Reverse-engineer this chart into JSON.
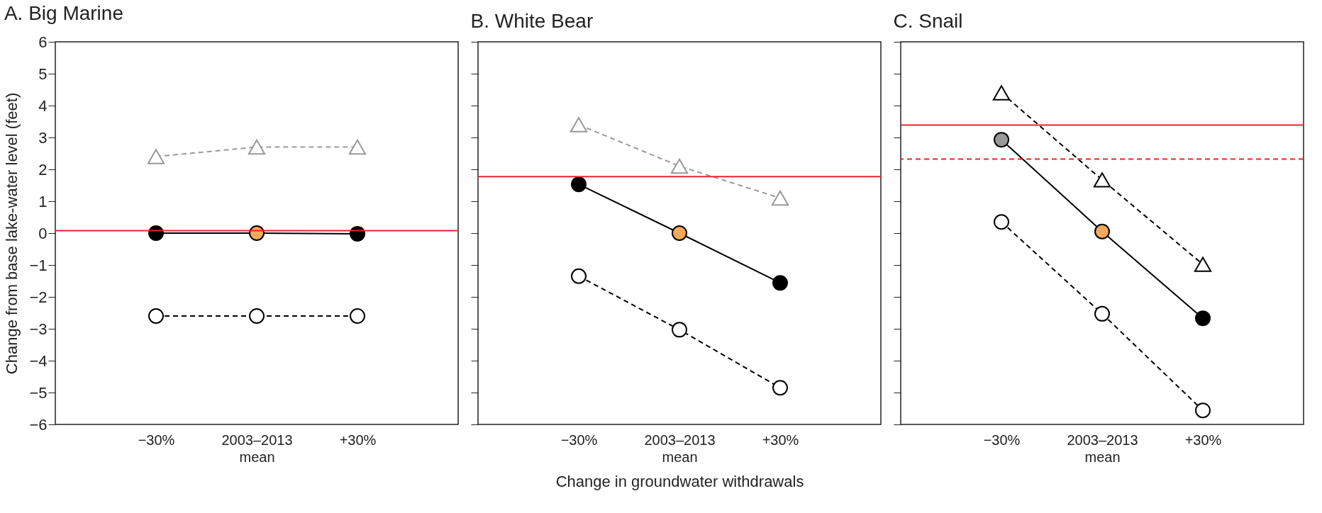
{
  "chart_data": [
    {
      "type": "line",
      "title": "A.  Big Marine",
      "ylabel": "Change from base lake-water level  (feet)",
      "categories": [
        "−30%",
        "2003–2013\nmean",
        "+30%"
      ],
      "ylim": [
        -6,
        6
      ],
      "yticks": [
        {
          "value": -6,
          "label": "−6"
        },
        {
          "value": -5,
          "label": "−5"
        },
        {
          "value": -4,
          "label": "−4"
        },
        {
          "value": -3,
          "label": "−3"
        },
        {
          "value": -2,
          "label": "−2"
        },
        {
          "value": -1,
          "label": "−1"
        },
        0,
        1,
        2,
        3,
        4,
        5,
        6
      ],
      "grid": false,
      "series": [
        {
          "color": "#999999",
          "colors": [
            "#ffffff",
            "#ffffff",
            "#ffffff"
          ],
          "values": [
            2.4,
            2.7,
            2.7
          ],
          "marker": "triangle",
          "line_style": "dashed"
        },
        {
          "color": "#000000",
          "colors": [
            "#000000",
            "#f5a95a",
            "#000000"
          ],
          "values": [
            0,
            0,
            -0.02
          ],
          "marker": "circle",
          "line_style": "solid"
        },
        {
          "color": "#000000",
          "colors": [
            "#ffffff",
            "#ffffff",
            "#ffffff"
          ],
          "values": [
            -2.6,
            -2.6,
            -2.6
          ],
          "marker": "circle",
          "line_style": "dashed"
        }
      ],
      "ref_lines": [
        {
          "axis": "y",
          "value": 0.08,
          "color": "#e8262b",
          "line_style": "solid"
        }
      ]
    },
    {
      "type": "line",
      "title": "B.  White Bear",
      "xlabel": "Change in groundwater withdrawals",
      "categories": [
        "−30%",
        "2003–2013\nmean",
        "+30%"
      ],
      "ylim": [
        -6,
        6
      ],
      "yticks": [
        {
          "value": -6,
          "label": null
        },
        {
          "value": -5,
          "label": null
        },
        {
          "value": -4,
          "label": null
        },
        {
          "value": -3,
          "label": null
        },
        {
          "value": -2,
          "label": null
        },
        {
          "value": -1,
          "label": null
        },
        {
          "value": 0,
          "label": null
        },
        {
          "value": 1,
          "label": null
        },
        {
          "value": 2,
          "label": null
        },
        {
          "value": 3,
          "label": null
        },
        {
          "value": 4,
          "label": null
        },
        {
          "value": 5,
          "label": null
        },
        {
          "value": 6,
          "label": null
        }
      ],
      "tick_labels": "x",
      "grid": false,
      "series": [
        {
          "color": "#999999",
          "colors": [
            "#ffffff",
            "#ffffff",
            "#ffffff"
          ],
          "values": [
            3.4,
            2.1,
            1.1
          ],
          "marker": "triangle",
          "line_style": "dashed"
        },
        {
          "color": "#000000",
          "colors": [
            "#000000",
            "#f5a95a",
            "#000000"
          ],
          "values": [
            1.53,
            0,
            -1.56
          ],
          "marker": "circle",
          "line_style": "solid"
        },
        {
          "color": "#000000",
          "colors": [
            "#ffffff",
            "#ffffff",
            "#ffffff"
          ],
          "values": [
            -1.35,
            -3.03,
            -4.85
          ],
          "marker": "circle",
          "line_style": "dashed"
        }
      ],
      "ref_lines": [
        {
          "axis": "y",
          "value": 1.77,
          "color": "#e8262b",
          "line_style": "solid"
        }
      ]
    },
    {
      "type": "line",
      "title": "C.  Snail",
      "categories": [
        "−30%",
        "2003–2013\nmean",
        "+30%"
      ],
      "ylim": [
        -6,
        6
      ],
      "yticks": [
        {
          "value": -6,
          "label": null
        },
        {
          "value": -5,
          "label": null
        },
        {
          "value": -4,
          "label": null
        },
        {
          "value": -3,
          "label": null
        },
        {
          "value": -2,
          "label": null
        },
        {
          "value": -1,
          "label": null
        },
        {
          "value": 0,
          "label": null
        },
        {
          "value": 1,
          "label": null
        },
        {
          "value": 2,
          "label": null
        },
        {
          "value": 3,
          "label": null
        },
        {
          "value": 4,
          "label": null
        },
        {
          "value": 5,
          "label": null
        },
        {
          "value": 6,
          "label": null
        }
      ],
      "tick_labels": "x",
      "grid": false,
      "series": [
        {
          "color": "#000000",
          "colors": [
            "#ffffff",
            "#ffffff",
            "#ffffff"
          ],
          "values": [
            4.4,
            1.67,
            -0.98
          ],
          "marker": "triangle",
          "line_style": "dashed"
        },
        {
          "color": "#000000",
          "colors": [
            "#999999",
            "#f5a95a",
            "#000000"
          ],
          "values": [
            2.93,
            0.05,
            -2.67
          ],
          "marker": "circle",
          "line_style": "solid"
        },
        {
          "color": "#000000",
          "colors": [
            "#ffffff",
            "#ffffff",
            "#ffffff"
          ],
          "values": [
            0.35,
            -2.53,
            -5.56
          ],
          "marker": "circle",
          "line_style": "dashed"
        }
      ],
      "ref_lines": [
        {
          "axis": "y",
          "value": 3.39,
          "color": "#e8262b",
          "line_style": "solid"
        },
        {
          "axis": "y",
          "value": 2.32,
          "color": "#e8262b",
          "line_style": "dashed"
        }
      ]
    }
  ]
}
